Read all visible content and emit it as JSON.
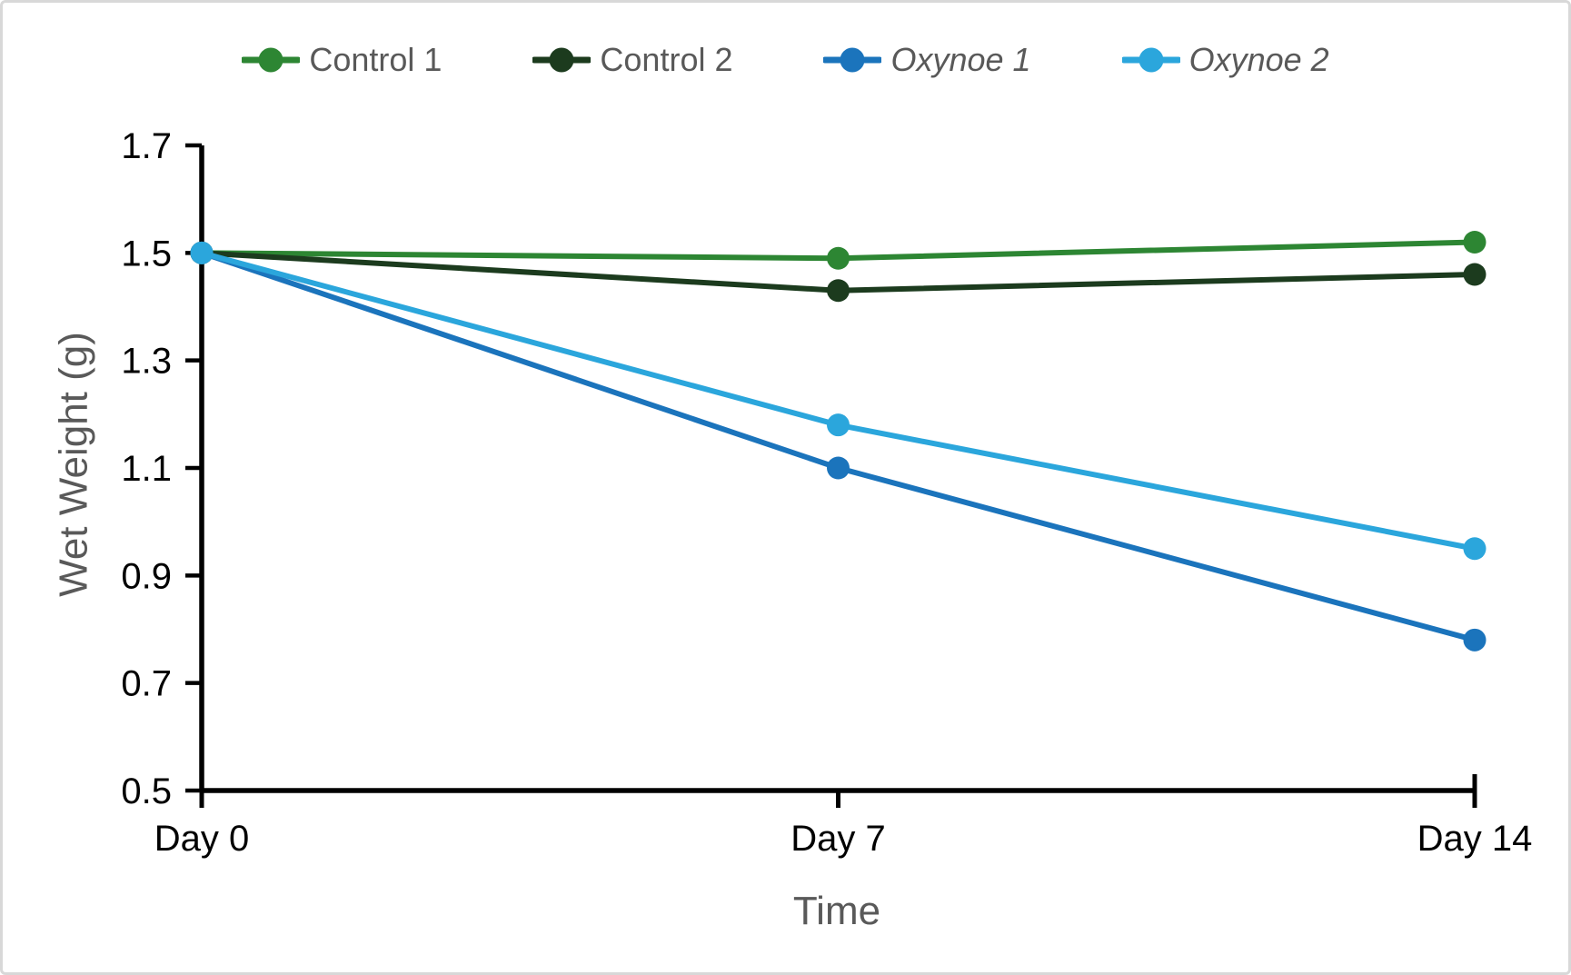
{
  "chart_data": {
    "type": "line",
    "title": "",
    "xlabel": "Time",
    "ylabel": "Wet Weight (g)",
    "categories": [
      "Day 0",
      "Day 7",
      "Day 14"
    ],
    "ylim": [
      0.5,
      1.7
    ],
    "yticks": [
      0.5,
      0.7,
      0.9,
      1.1,
      1.3,
      1.5,
      1.7
    ],
    "grid": false,
    "legend_position": "top-center",
    "marker": "circle",
    "series": [
      {
        "name": "Control 1",
        "values": [
          1.5,
          1.49,
          1.52
        ],
        "color": "#2d8633",
        "italic": false
      },
      {
        "name": "Control 2",
        "values": [
          1.5,
          1.43,
          1.46
        ],
        "color": "#1c3b1e",
        "italic": false
      },
      {
        "name": "Oxynoe 1",
        "values": [
          1.5,
          1.1,
          0.78
        ],
        "color": "#1b74bc",
        "italic": true
      },
      {
        "name": "Oxynoe 2",
        "values": [
          1.5,
          1.18,
          0.95
        ],
        "color": "#2ba6dc",
        "italic": true
      }
    ]
  },
  "colors": {
    "axis": "#000000",
    "tick_label": "#000000",
    "axis_title": "#595959",
    "legend_text": "#595959",
    "background": "#ffffff",
    "page_border": "#d8d8d8"
  }
}
